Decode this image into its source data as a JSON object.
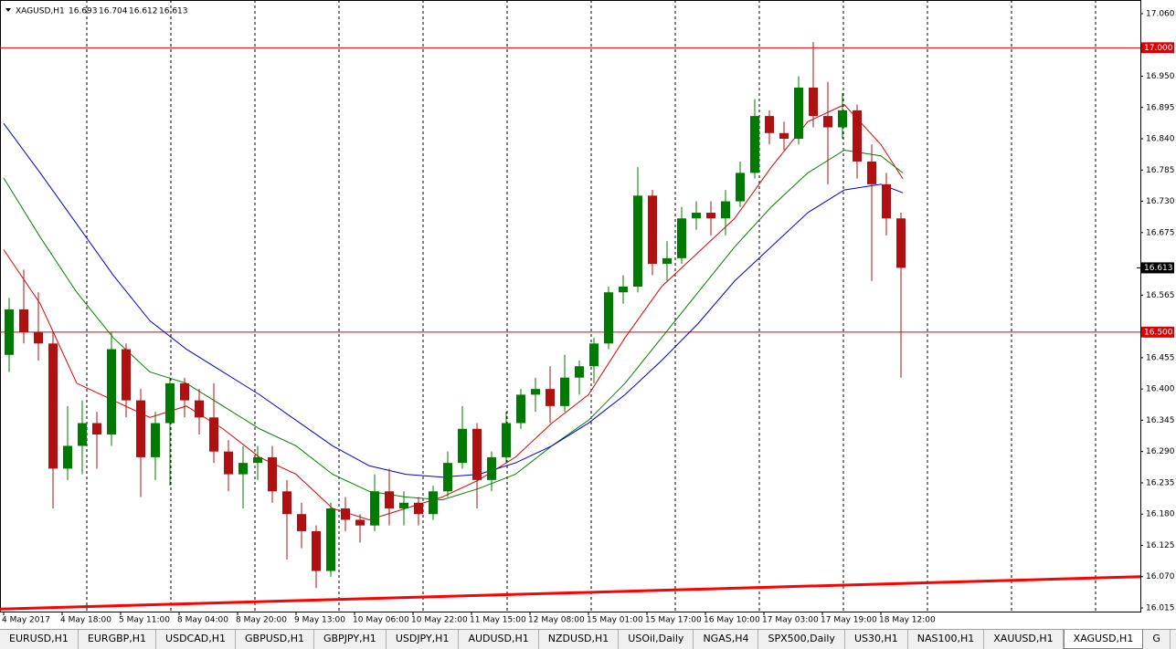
{
  "chart_data": {
    "type": "candlestick",
    "symbol": "XAGUSD,H1",
    "ohlc_header": [
      16.693,
      16.704,
      16.612,
      16.613
    ],
    "x": [
      1.5,
      5.5,
      9.5,
      13.5,
      17.5,
      21.5,
      25.5,
      29.5,
      33.5,
      37.5,
      41.5,
      45.5,
      49.5,
      53.5,
      57.5,
      61.5,
      65.5,
      69.5,
      73.5,
      77.5,
      81.5,
      85.5,
      89.5,
      93.5,
      97.5,
      101.5,
      105.5,
      109.5,
      113.5,
      117.5,
      121.5,
      125.5,
      129.5,
      133.5,
      137.5,
      141.5,
      145.5,
      149.5,
      153.5,
      157.5,
      161.5,
      165.5,
      169.5,
      173.5,
      177.5,
      181.5,
      185.5,
      189.5,
      193.5,
      197.5,
      201.5,
      205.5,
      209.5,
      213.5,
      217.5,
      221.5,
      225.5,
      229.5,
      233.5,
      237.5,
      241.5,
      245.5
    ],
    "open": [
      16.46,
      16.54,
      16.5,
      16.48,
      16.26,
      16.3,
      16.34,
      16.32,
      16.47,
      16.38,
      16.28,
      16.34,
      16.41,
      16.38,
      16.35,
      16.29,
      16.25,
      16.27,
      16.28,
      16.22,
      16.18,
      16.15,
      16.08,
      16.19,
      16.17,
      16.16,
      16.22,
      16.19,
      16.2,
      16.18,
      16.22,
      16.27,
      16.33,
      16.24,
      16.28,
      16.34,
      16.39,
      16.4,
      16.37,
      16.42,
      16.44,
      16.48,
      16.57,
      16.58,
      16.74,
      16.62,
      16.63,
      16.7,
      16.71,
      16.7,
      16.73,
      16.78,
      16.88,
      16.85,
      16.84,
      16.93,
      16.88,
      16.86,
      16.89,
      16.8,
      16.76,
      16.7
    ],
    "high": [
      16.56,
      16.61,
      16.57,
      16.5,
      16.37,
      16.38,
      16.36,
      16.5,
      16.48,
      16.4,
      16.36,
      16.42,
      16.42,
      16.4,
      16.41,
      16.31,
      16.3,
      16.3,
      16.3,
      16.24,
      16.2,
      16.16,
      16.2,
      16.21,
      16.18,
      16.25,
      16.26,
      16.22,
      16.21,
      16.23,
      16.29,
      16.37,
      16.34,
      16.29,
      16.36,
      16.4,
      16.42,
      16.44,
      16.46,
      16.45,
      16.49,
      16.58,
      16.6,
      16.79,
      16.75,
      16.66,
      16.72,
      16.73,
      16.73,
      16.75,
      16.8,
      16.91,
      16.89,
      16.87,
      16.95,
      17.01,
      16.94,
      16.92,
      16.9,
      16.83,
      16.78,
      16.71
    ],
    "low": [
      16.43,
      16.48,
      16.45,
      16.19,
      16.24,
      16.25,
      16.26,
      16.3,
      16.35,
      16.21,
      16.24,
      16.23,
      16.35,
      16.32,
      16.27,
      16.22,
      16.19,
      16.24,
      16.2,
      16.1,
      16.12,
      16.05,
      16.07,
      16.15,
      16.13,
      16.15,
      16.16,
      16.16,
      16.16,
      16.17,
      16.21,
      16.26,
      16.19,
      16.22,
      16.27,
      16.33,
      16.36,
      16.34,
      16.36,
      16.39,
      16.41,
      16.47,
      16.55,
      16.57,
      16.6,
      16.59,
      16.62,
      16.68,
      16.67,
      16.67,
      16.72,
      16.77,
      16.83,
      16.82,
      16.83,
      16.86,
      16.76,
      16.84,
      16.77,
      16.59,
      16.67,
      16.42
    ],
    "close": [
      16.54,
      16.5,
      16.48,
      16.26,
      16.3,
      16.34,
      16.32,
      16.47,
      16.38,
      16.28,
      16.34,
      16.41,
      16.38,
      16.35,
      16.29,
      16.25,
      16.27,
      16.28,
      16.22,
      16.18,
      16.15,
      16.08,
      16.19,
      16.17,
      16.16,
      16.22,
      16.19,
      16.2,
      16.18,
      16.22,
      16.27,
      16.33,
      16.24,
      16.28,
      16.34,
      16.39,
      16.4,
      16.37,
      16.42,
      16.44,
      16.48,
      16.57,
      16.58,
      16.74,
      16.62,
      16.63,
      16.7,
      16.71,
      16.7,
      16.73,
      16.78,
      16.88,
      16.85,
      16.84,
      16.93,
      16.88,
      16.86,
      16.89,
      16.8,
      16.76,
      16.7,
      16.613
    ],
    "up_color": "#007a00",
    "down_color": "#b01010",
    "moving_averages": [
      {
        "color": "#e00000",
        "x": [
          0,
          10,
          20,
          30,
          40,
          50,
          60,
          70,
          80,
          90,
          100,
          110,
          120,
          130,
          140,
          150,
          160,
          170,
          180,
          190,
          200,
          210,
          220,
          230,
          240,
          246
        ],
        "values": [
          16.645,
          16.55,
          16.41,
          16.38,
          16.35,
          16.37,
          16.33,
          16.28,
          16.25,
          16.19,
          16.17,
          16.19,
          16.21,
          16.24,
          16.28,
          16.34,
          16.39,
          16.49,
          16.58,
          16.64,
          16.7,
          16.79,
          16.87,
          16.9,
          16.83,
          16.77
        ]
      },
      {
        "color": "#008000",
        "x": [
          0,
          10,
          20,
          30,
          40,
          50,
          60,
          70,
          80,
          90,
          100,
          110,
          120,
          130,
          140,
          150,
          160,
          170,
          180,
          190,
          200,
          210,
          220,
          230,
          240,
          246
        ],
        "values": [
          16.771,
          16.667,
          16.57,
          16.49,
          16.43,
          16.41,
          16.37,
          16.33,
          16.3,
          16.25,
          16.22,
          16.21,
          16.205,
          16.225,
          16.25,
          16.3,
          16.345,
          16.41,
          16.49,
          16.57,
          16.65,
          16.72,
          16.78,
          16.82,
          16.81,
          16.78
        ]
      },
      {
        "color": "#0000dd",
        "x": [
          0,
          10,
          20,
          30,
          40,
          50,
          60,
          70,
          80,
          90,
          100,
          110,
          120,
          130,
          140,
          150,
          160,
          170,
          180,
          190,
          200,
          210,
          220,
          230,
          240,
          246
        ],
        "values": [
          16.867,
          16.78,
          16.69,
          16.6,
          16.52,
          16.47,
          16.43,
          16.39,
          16.345,
          16.3,
          16.265,
          16.25,
          16.245,
          16.25,
          16.27,
          16.3,
          16.34,
          16.39,
          16.45,
          16.515,
          16.59,
          16.65,
          16.71,
          16.75,
          16.76,
          16.745
        ]
      }
    ],
    "trend_line": {
      "color": "#ff0000",
      "x": [
        -1,
        311
      ],
      "values": [
        16.013,
        16.07
      ]
    },
    "hlines": [
      {
        "value": 17.0,
        "label": "17.000"
      },
      {
        "value": 16.5,
        "label": "16.500"
      }
    ],
    "hline_color": "#e00000",
    "last_price": 16.613,
    "xlim": [
      -1,
      311
    ],
    "ylim": [
      16.0086,
      17.084
    ],
    "yticks": [
      {
        "value": 17.06,
        "label": "17.060"
      },
      {
        "value": 16.95,
        "label": "16.950"
      },
      {
        "value": 16.895,
        "label": "16.895"
      },
      {
        "value": 16.84,
        "label": "16.840"
      },
      {
        "value": 16.785,
        "label": "16.785"
      },
      {
        "value": 16.73,
        "label": "16.730"
      },
      {
        "value": 16.675,
        "label": "16.675"
      },
      {
        "value": 16.565,
        "label": "16.565"
      },
      {
        "value": 16.455,
        "label": "16.455"
      },
      {
        "value": 16.4,
        "label": "16.400"
      },
      {
        "value": 16.345,
        "label": "16.345"
      },
      {
        "value": 16.29,
        "label": "16.290"
      },
      {
        "value": 16.235,
        "label": "16.235"
      },
      {
        "value": 16.18,
        "label": "16.180"
      },
      {
        "value": 16.125,
        "label": "16.125"
      },
      {
        "value": 16.07,
        "label": "16.070"
      },
      {
        "value": 16.015,
        "label": "16.015"
      }
    ],
    "xticks": [
      {
        "value": 0,
        "label": "4 May 2017"
      },
      {
        "value": 16,
        "label": "4 May 18:00"
      },
      {
        "value": 32,
        "label": "5 May 11:00"
      },
      {
        "value": 48,
        "label": "8 May 04:00"
      },
      {
        "value": 64,
        "label": "8 May 20:00"
      },
      {
        "value": 80,
        "label": "9 May 13:00"
      },
      {
        "value": 96,
        "label": "10 May 06:00"
      },
      {
        "value": 112,
        "label": "10 May 22:00"
      },
      {
        "value": 128,
        "label": "11 May 15:00"
      },
      {
        "value": 144,
        "label": "12 May 08:00"
      },
      {
        "value": 160,
        "label": "15 May 01:00"
      },
      {
        "value": 176,
        "label": "15 May 17:00"
      },
      {
        "value": 192,
        "label": "16 May 10:00"
      },
      {
        "value": 208,
        "label": "17 May 03:00"
      },
      {
        "value": 224,
        "label": "17 May 19:00"
      },
      {
        "value": 240,
        "label": "18 May 12:00"
      }
    ],
    "grid": true,
    "tabs": [
      "EURUSD,H1",
      "EURGBP,H1",
      "USDCAD,H1",
      "GBPUSD,H1",
      "GBPJPY,H1",
      "USDJPY,H1",
      "AUDUSD,H1",
      "NZDUSD,H1",
      "USOil,Daily",
      "NGAS,H4",
      "SPX500,Daily",
      "US30,H1",
      "NAS100,H1",
      "XAUUSD,H1",
      "XAGUSD,H1",
      "G"
    ],
    "active_tab": 14
  }
}
